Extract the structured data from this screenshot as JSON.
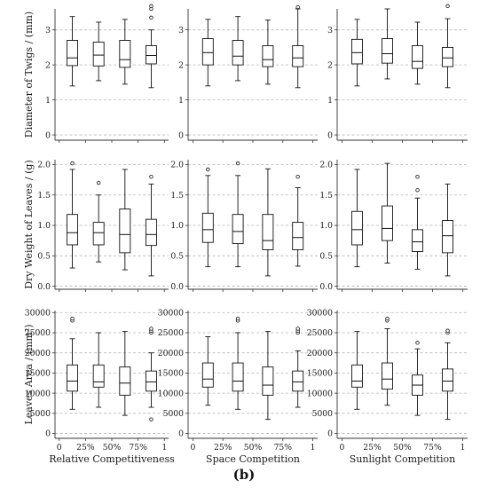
{
  "figure": {
    "caption": "(b)",
    "x_tick_labels": [
      "0",
      "25%",
      "50%",
      "75%",
      "1"
    ],
    "column_titles": [
      "Relative Competitiveness",
      "Space Competition",
      "Sunlight Competition"
    ]
  },
  "chart_data": [
    {
      "type": "box",
      "panel": "Relative Competitiveness - Diameter of Twigs",
      "ylabel": "Diameter of Twigs / (mm)",
      "xlabel": "",
      "ylim": [
        -0.15,
        3.6
      ],
      "yticks": [
        0,
        1,
        2,
        3
      ],
      "tick_labels": [
        "0",
        "1",
        "2",
        "3"
      ],
      "grid": "horizontal dashed",
      "boxes": [
        {
          "x": 0.125,
          "whislo": 1.4,
          "q1": 1.98,
          "med": 2.2,
          "q3": 2.7,
          "whishi": 3.38,
          "fliers": []
        },
        {
          "x": 0.375,
          "whislo": 1.55,
          "q1": 1.97,
          "med": 2.28,
          "q3": 2.65,
          "whishi": 3.22,
          "fliers": []
        },
        {
          "x": 0.625,
          "whislo": 1.45,
          "q1": 1.93,
          "med": 2.15,
          "q3": 2.7,
          "whishi": 3.3,
          "fliers": []
        },
        {
          "x": 0.875,
          "whislo": 1.35,
          "q1": 2.03,
          "med": 2.27,
          "q3": 2.55,
          "whishi": 3.0,
          "fliers": [
            3.35,
            3.6,
            3.68
          ]
        }
      ]
    },
    {
      "type": "box",
      "panel": "Space Competition - Diameter of Twigs",
      "ylabel": "",
      "xlabel": "",
      "ylim": [
        -0.15,
        3.6
      ],
      "yticks": [
        0,
        1,
        2,
        3
      ],
      "tick_labels": [
        "0",
        "1",
        "2",
        "3"
      ],
      "grid": "horizontal dashed",
      "boxes": [
        {
          "x": 0.125,
          "whislo": 1.4,
          "q1": 2.0,
          "med": 2.35,
          "q3": 2.75,
          "whishi": 3.3,
          "fliers": []
        },
        {
          "x": 0.375,
          "whislo": 1.55,
          "q1": 2.0,
          "med": 2.25,
          "q3": 2.7,
          "whishi": 3.38,
          "fliers": []
        },
        {
          "x": 0.625,
          "whislo": 1.45,
          "q1": 1.95,
          "med": 2.15,
          "q3": 2.55,
          "whishi": 3.28,
          "fliers": []
        },
        {
          "x": 0.875,
          "whislo": 1.35,
          "q1": 1.95,
          "med": 2.2,
          "q3": 2.55,
          "whishi": 3.6,
          "fliers": [
            3.65
          ]
        }
      ]
    },
    {
      "type": "box",
      "panel": "Sunlight Competition - Diameter of Twigs",
      "ylabel": "",
      "xlabel": "",
      "ylim": [
        -0.15,
        3.6
      ],
      "yticks": [
        0,
        1,
        2,
        3
      ],
      "tick_labels": [
        "0",
        "1",
        "2",
        "3"
      ],
      "grid": "horizontal dashed",
      "boxes": [
        {
          "x": 0.125,
          "whislo": 1.4,
          "q1": 2.03,
          "med": 2.35,
          "q3": 2.73,
          "whishi": 3.3,
          "fliers": []
        },
        {
          "x": 0.375,
          "whislo": 1.6,
          "q1": 2.05,
          "med": 2.32,
          "q3": 2.75,
          "whishi": 3.6,
          "fliers": []
        },
        {
          "x": 0.625,
          "whislo": 1.45,
          "q1": 1.9,
          "med": 2.1,
          "q3": 2.55,
          "whishi": 3.22,
          "fliers": []
        },
        {
          "x": 0.875,
          "whislo": 1.35,
          "q1": 1.95,
          "med": 2.2,
          "q3": 2.5,
          "whishi": 3.32,
          "fliers": [
            3.68
          ]
        }
      ]
    },
    {
      "type": "box",
      "panel": "Relative Competitiveness - Dry Weight of Leaves",
      "ylabel": "Dry Weight of Leaves / (g)",
      "xlabel": "",
      "ylim": [
        -0.05,
        2.08
      ],
      "yticks": [
        0,
        0.5,
        1,
        1.5,
        2
      ],
      "tick_labels": [
        "0.0",
        "0.5",
        "1.0",
        "1.5",
        "2.0"
      ],
      "grid": "horizontal dashed",
      "boxes": [
        {
          "x": 0.125,
          "whislo": 0.3,
          "q1": 0.68,
          "med": 0.88,
          "q3": 1.18,
          "whishi": 1.92,
          "fliers": [
            2.02
          ]
        },
        {
          "x": 0.375,
          "whislo": 0.4,
          "q1": 0.68,
          "med": 0.88,
          "q3": 1.05,
          "whishi": 1.5,
          "fliers": [
            1.7
          ]
        },
        {
          "x": 0.625,
          "whislo": 0.27,
          "q1": 0.55,
          "med": 0.85,
          "q3": 1.27,
          "whishi": 1.92,
          "fliers": []
        },
        {
          "x": 0.875,
          "whislo": 0.17,
          "q1": 0.67,
          "med": 0.85,
          "q3": 1.1,
          "whishi": 1.68,
          "fliers": [
            1.8
          ]
        }
      ]
    },
    {
      "type": "box",
      "panel": "Space Competition - Dry Weight of Leaves",
      "ylabel": "",
      "xlabel": "",
      "ylim": [
        -0.05,
        2.08
      ],
      "yticks": [
        0,
        0.5,
        1,
        1.5,
        2
      ],
      "tick_labels": [
        "0.0",
        "0.5",
        "1.0",
        "1.5",
        "2.0"
      ],
      "grid": "horizontal dashed",
      "boxes": [
        {
          "x": 0.125,
          "whislo": 0.32,
          "q1": 0.72,
          "med": 0.93,
          "q3": 1.2,
          "whishi": 1.82,
          "fliers": [
            1.92
          ]
        },
        {
          "x": 0.375,
          "whislo": 0.32,
          "q1": 0.7,
          "med": 0.9,
          "q3": 1.18,
          "whishi": 1.82,
          "fliers": [
            2.02
          ]
        },
        {
          "x": 0.625,
          "whislo": 0.17,
          "q1": 0.6,
          "med": 0.75,
          "q3": 1.18,
          "whishi": 1.93,
          "fliers": []
        },
        {
          "x": 0.875,
          "whislo": 0.33,
          "q1": 0.6,
          "med": 0.8,
          "q3": 1.05,
          "whishi": 1.62,
          "fliers": [
            1.8
          ]
        }
      ]
    },
    {
      "type": "box",
      "panel": "Sunlight Competition - Dry Weight of Leaves",
      "ylabel": "",
      "xlabel": "",
      "ylim": [
        -0.05,
        2.08
      ],
      "yticks": [
        0,
        0.5,
        1,
        1.5,
        2
      ],
      "tick_labels": [
        "0.0",
        "0.5",
        "1.0",
        "1.5",
        "2.0"
      ],
      "grid": "horizontal dashed",
      "boxes": [
        {
          "x": 0.125,
          "whislo": 0.32,
          "q1": 0.68,
          "med": 0.93,
          "q3": 1.23,
          "whishi": 1.92,
          "fliers": []
        },
        {
          "x": 0.375,
          "whislo": 0.38,
          "q1": 0.75,
          "med": 0.95,
          "q3": 1.32,
          "whishi": 2.02,
          "fliers": []
        },
        {
          "x": 0.625,
          "whislo": 0.28,
          "q1": 0.57,
          "med": 0.73,
          "q3": 0.93,
          "whishi": 1.45,
          "fliers": [
            1.58,
            1.8
          ]
        },
        {
          "x": 0.875,
          "whislo": 0.17,
          "q1": 0.55,
          "med": 0.83,
          "q3": 1.08,
          "whishi": 1.68,
          "fliers": []
        }
      ]
    },
    {
      "type": "box",
      "panel": "Relative Competitiveness - Leaves Area",
      "ylabel": "Leaves Area / (mm²)",
      "xlabel": "Relative Competitiveness",
      "ylim": [
        -1200,
        30500
      ],
      "yticks": [
        0,
        5000,
        10000,
        15000,
        20000,
        25000,
        30000
      ],
      "tick_labels": [
        "0",
        "5000",
        "10000",
        "15000",
        "20000",
        "25000",
        "30000"
      ],
      "grid": "horizontal dashed",
      "boxes": [
        {
          "x": 0.125,
          "whislo": 6000,
          "q1": 10500,
          "med": 13000,
          "q3": 17000,
          "whishi": 23500,
          "fliers": [
            28000,
            28500
          ]
        },
        {
          "x": 0.375,
          "whislo": 6500,
          "q1": 11500,
          "med": 12800,
          "q3": 17000,
          "whishi": 25000,
          "fliers": []
        },
        {
          "x": 0.625,
          "whislo": 4500,
          "q1": 9500,
          "med": 12500,
          "q3": 16500,
          "whishi": 25300,
          "fliers": []
        },
        {
          "x": 0.875,
          "whislo": 6500,
          "q1": 10500,
          "med": 12800,
          "q3": 15500,
          "whishi": 20000,
          "fliers": [
            3500,
            25000,
            25500,
            26000
          ]
        }
      ]
    },
    {
      "type": "box",
      "panel": "Space Competition - Leaves Area",
      "ylabel": "",
      "xlabel": "Space Competition",
      "ylim": [
        -1200,
        30500
      ],
      "yticks": [
        0,
        5000,
        10000,
        15000,
        20000,
        25000,
        30000
      ],
      "tick_labels": [
        "0",
        "5000",
        "10000",
        "15000",
        "20000",
        "25000",
        "30000"
      ],
      "grid": "horizontal dashed",
      "boxes": [
        {
          "x": 0.125,
          "whislo": 7000,
          "q1": 11500,
          "med": 13500,
          "q3": 17500,
          "whishi": 24000,
          "fliers": []
        },
        {
          "x": 0.375,
          "whislo": 6000,
          "q1": 10500,
          "med": 13000,
          "q3": 17500,
          "whishi": 25000,
          "fliers": [
            28000,
            28500
          ]
        },
        {
          "x": 0.625,
          "whislo": 3500,
          "q1": 9500,
          "med": 12000,
          "q3": 16500,
          "whishi": 25300,
          "fliers": []
        },
        {
          "x": 0.875,
          "whislo": 6500,
          "q1": 10500,
          "med": 12800,
          "q3": 15500,
          "whishi": 20500,
          "fliers": [
            25000,
            25500,
            26000
          ]
        }
      ]
    },
    {
      "type": "box",
      "panel": "Sunlight Competition - Leaves Area",
      "ylabel": "",
      "xlabel": "Sunlight Competition",
      "ylim": [
        -1200,
        30500
      ],
      "yticks": [
        0,
        5000,
        10000,
        15000,
        20000,
        25000,
        30000
      ],
      "tick_labels": [
        "0",
        "5000",
        "10000",
        "15000",
        "20000",
        "25000",
        "30000"
      ],
      "grid": "horizontal dashed",
      "boxes": [
        {
          "x": 0.125,
          "whislo": 6000,
          "q1": 11500,
          "med": 13000,
          "q3": 17000,
          "whishi": 25300,
          "fliers": []
        },
        {
          "x": 0.375,
          "whislo": 7000,
          "q1": 11000,
          "med": 13500,
          "q3": 17500,
          "whishi": 26000,
          "fliers": [
            28000,
            28500
          ]
        },
        {
          "x": 0.625,
          "whislo": 4500,
          "q1": 9500,
          "med": 12000,
          "q3": 14500,
          "whishi": 21000,
          "fliers": [
            22500
          ]
        },
        {
          "x": 0.875,
          "whislo": 3500,
          "q1": 10500,
          "med": 13000,
          "q3": 16000,
          "whishi": 22500,
          "fliers": [
            25000,
            25500
          ]
        }
      ]
    }
  ]
}
